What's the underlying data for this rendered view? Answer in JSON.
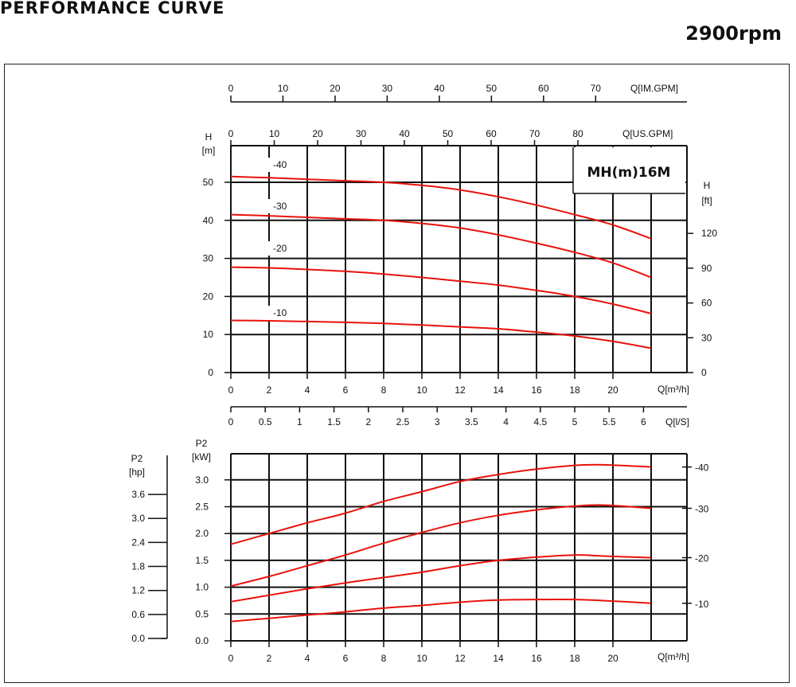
{
  "header": {
    "title": "PERFORMANCE CURVE",
    "speed": "2900rpm"
  },
  "colors": {
    "curve": "#e8130c",
    "grid": "#111111"
  },
  "model_label": "MH(m)16M",
  "chart_data": [
    {
      "type": "line",
      "name": "head",
      "model": "MH(m)16M",
      "xlabel": "Q[m³/h]",
      "ylabel": "H [m]",
      "y2label": "H [ft]",
      "xlim": [
        0,
        22
      ],
      "ylim": [
        0,
        50
      ],
      "xticks": [
        0,
        2,
        4,
        6,
        8,
        10,
        12,
        14,
        16,
        18,
        20
      ],
      "yticks": [
        0,
        10,
        20,
        30,
        40,
        50
      ],
      "y2ticks": [
        0,
        30,
        60,
        90,
        120
      ],
      "extra_axes": [
        {
          "label": "Q[IM.GPM]",
          "ticks": [
            0,
            10,
            20,
            30,
            40,
            50,
            60,
            70
          ]
        },
        {
          "label": "Q[US.GPM]",
          "ticks": [
            0,
            10,
            20,
            30,
            40,
            50,
            60,
            70,
            80
          ]
        },
        {
          "label": "Q[l/S]",
          "ticks": [
            "0",
            "0.5",
            "1",
            "1.5",
            "2",
            "2.5",
            "3",
            "3.5",
            "4",
            "4.5",
            "5",
            "5.5",
            "6"
          ]
        }
      ],
      "x": [
        0,
        2,
        4,
        6,
        8,
        10,
        12,
        14,
        16,
        18,
        20,
        22
      ],
      "series": [
        {
          "name": "-40",
          "values": [
            51.5,
            51.2,
            50.8,
            50.4,
            50.0,
            49.2,
            48.0,
            46.2,
            44.0,
            41.5,
            38.8,
            35.2
          ]
        },
        {
          "name": "-30",
          "values": [
            41.5,
            41.2,
            40.8,
            40.4,
            40.0,
            39.2,
            38.0,
            36.2,
            34.0,
            31.6,
            28.8,
            25.0
          ]
        },
        {
          "name": "-20",
          "values": [
            27.7,
            27.5,
            27.1,
            26.6,
            25.9,
            25.0,
            24.0,
            23.0,
            21.6,
            20.0,
            18.0,
            15.5
          ]
        },
        {
          "name": "-10",
          "values": [
            13.7,
            13.6,
            13.4,
            13.2,
            12.9,
            12.5,
            12.0,
            11.5,
            10.6,
            9.6,
            8.2,
            6.4
          ]
        }
      ]
    },
    {
      "type": "line",
      "name": "power",
      "xlabel": "Q[m³/h]",
      "ylabel": "P2 [kW]",
      "y2label": "P2 [hp]",
      "xlim": [
        0,
        22
      ],
      "ylim": [
        0,
        3.5
      ],
      "xticks": [
        0,
        2,
        4,
        6,
        8,
        10,
        12,
        14,
        16,
        18,
        20
      ],
      "yticks": [
        "0.0",
        "0.5",
        "1.0",
        "1.5",
        "2.0",
        "2.5",
        "3.0"
      ],
      "y2ticks": [
        "0.0",
        "0.6",
        "1.2",
        "1.8",
        "2.4",
        "3.0",
        "3.6"
      ],
      "x": [
        0,
        2,
        4,
        6,
        8,
        10,
        12,
        14,
        16,
        18,
        19.5,
        22
      ],
      "series": [
        {
          "name": "-40",
          "values": [
            1.8,
            2.0,
            2.2,
            2.38,
            2.6,
            2.78,
            2.97,
            3.1,
            3.2,
            3.27,
            3.28,
            3.24
          ]
        },
        {
          "name": "-30",
          "values": [
            1.02,
            1.2,
            1.4,
            1.6,
            1.82,
            2.02,
            2.2,
            2.34,
            2.44,
            2.51,
            2.53,
            2.47
          ]
        },
        {
          "name": "-20",
          "values": [
            0.73,
            0.85,
            0.97,
            1.08,
            1.18,
            1.28,
            1.4,
            1.5,
            1.56,
            1.6,
            1.58,
            1.55
          ]
        },
        {
          "name": "-10",
          "values": [
            0.36,
            0.42,
            0.48,
            0.54,
            0.61,
            0.66,
            0.72,
            0.76,
            0.77,
            0.77,
            0.75,
            0.7
          ]
        }
      ]
    }
  ]
}
